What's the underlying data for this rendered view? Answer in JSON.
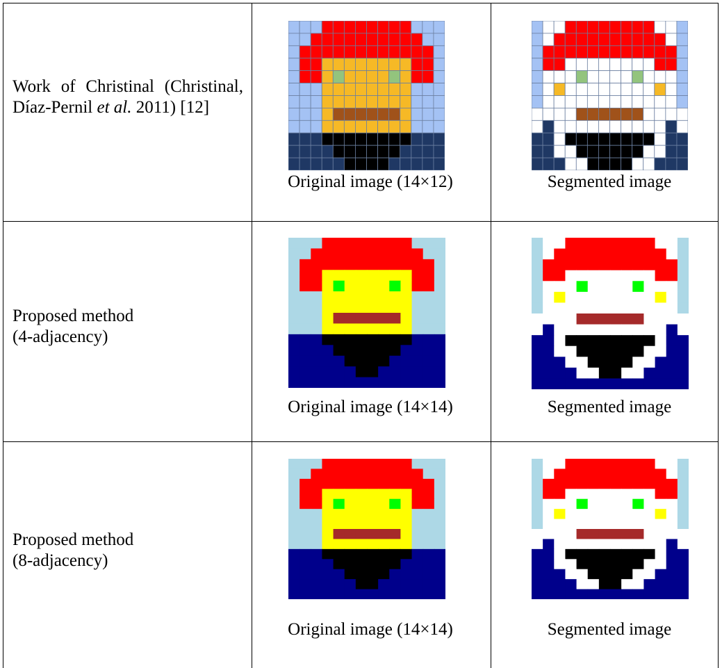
{
  "table": {
    "rows": [
      {
        "method": [
          "Work of Christinal (Christinal, Díaz-Pernil ",
          "et al.",
          " 2011) [12]"
        ],
        "original_caption": "Original image (14×12)",
        "segmented_caption": "Segmented image"
      },
      {
        "method": [
          "Proposed method",
          "(4-adjacency)"
        ],
        "original_caption": "Original image (14×14)",
        "segmented_caption": "Segmented image"
      },
      {
        "method": [
          "Proposed method",
          "(8-adjacency)"
        ],
        "original_caption": "Original image (14×14)",
        "segmented_caption": "Segmented image"
      }
    ]
  }
}
